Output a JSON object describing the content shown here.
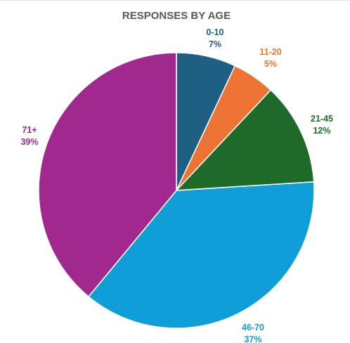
{
  "chart_data": {
    "type": "pie",
    "title": "RESPONSES BY AGE",
    "slices": [
      {
        "category": "0-10",
        "value": 7,
        "value_label": "7%",
        "color": "#1f5f84"
      },
      {
        "category": "11-20",
        "value": 5,
        "value_label": "5%",
        "color": "#ed7334"
      },
      {
        "category": "21-45",
        "value": 12,
        "value_label": "12%",
        "color": "#1e6b29"
      },
      {
        "category": "46-70",
        "value": 37,
        "value_label": "37%",
        "color": "#0f9ed8"
      },
      {
        "category": "71+",
        "value": 39,
        "value_label": "39%",
        "color": "#a0288f"
      }
    ],
    "start_angle_deg": 0,
    "direction": "clockwise",
    "legend": "none",
    "data_labels": "outside"
  }
}
